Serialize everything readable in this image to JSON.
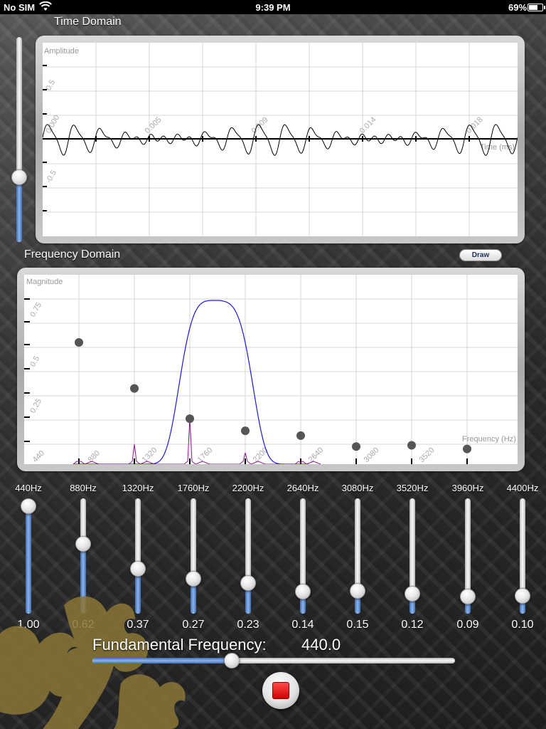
{
  "status_bar": {
    "carrier": "No SIM",
    "time": "9:39 PM",
    "battery": "69%"
  },
  "time_domain": {
    "title": "Time Domain",
    "y_axis_label": "Amplitude",
    "x_axis_label": "Time (ms)",
    "y_tick_labels": [
      "0.5",
      "0.000",
      "-0.5"
    ],
    "x_tick_labels": [
      "0.005",
      "0.009",
      "0.014",
      "0.018"
    ]
  },
  "amplitude_slider": {
    "value": 0.3
  },
  "frequency_domain": {
    "title": "Frequency Domain",
    "y_axis_label": "Magnitude",
    "x_axis_label": "Frequency (Hz)",
    "y_tick_labels": [
      "0.75",
      "0.5",
      "0.25"
    ],
    "x_tick_labels": [
      "440",
      "880",
      "1320",
      "1760",
      "2200",
      "2640",
      "3080",
      "3520"
    ]
  },
  "draw_button": {
    "label": "Draw"
  },
  "harmonics": [
    {
      "label": "440Hz",
      "value": "1.00",
      "level": 1.0
    },
    {
      "label": "880Hz",
      "value": "0.62",
      "level": 0.62
    },
    {
      "label": "1320Hz",
      "value": "0.37",
      "level": 0.37
    },
    {
      "label": "1760Hz",
      "value": "0.27",
      "level": 0.27
    },
    {
      "label": "2200Hz",
      "value": "0.23",
      "level": 0.23
    },
    {
      "label": "2640Hz",
      "value": "0.14",
      "level": 0.14
    },
    {
      "label": "3080Hz",
      "value": "0.15",
      "level": 0.15
    },
    {
      "label": "3520Hz",
      "value": "0.12",
      "level": 0.12
    },
    {
      "label": "3960Hz",
      "value": "0.09",
      "level": 0.09
    },
    {
      "label": "4400Hz",
      "value": "0.10",
      "level": 0.1
    }
  ],
  "fundamental": {
    "label": "Fundamental Frequency:",
    "value": "440.0",
    "slider_level": 0.38
  },
  "icons": {
    "stop": "stop-icon",
    "wifi": "wifi-icon",
    "battery": "battery-icon",
    "emblem": "dragon-emblem"
  },
  "colors": {
    "slider_fill": "#4a7bc4",
    "harmonic_marker": "#555555",
    "spectrum_line": "#1a1ad0",
    "filtered_line": "#8a1a8a",
    "stop_red": "#e01010"
  }
}
